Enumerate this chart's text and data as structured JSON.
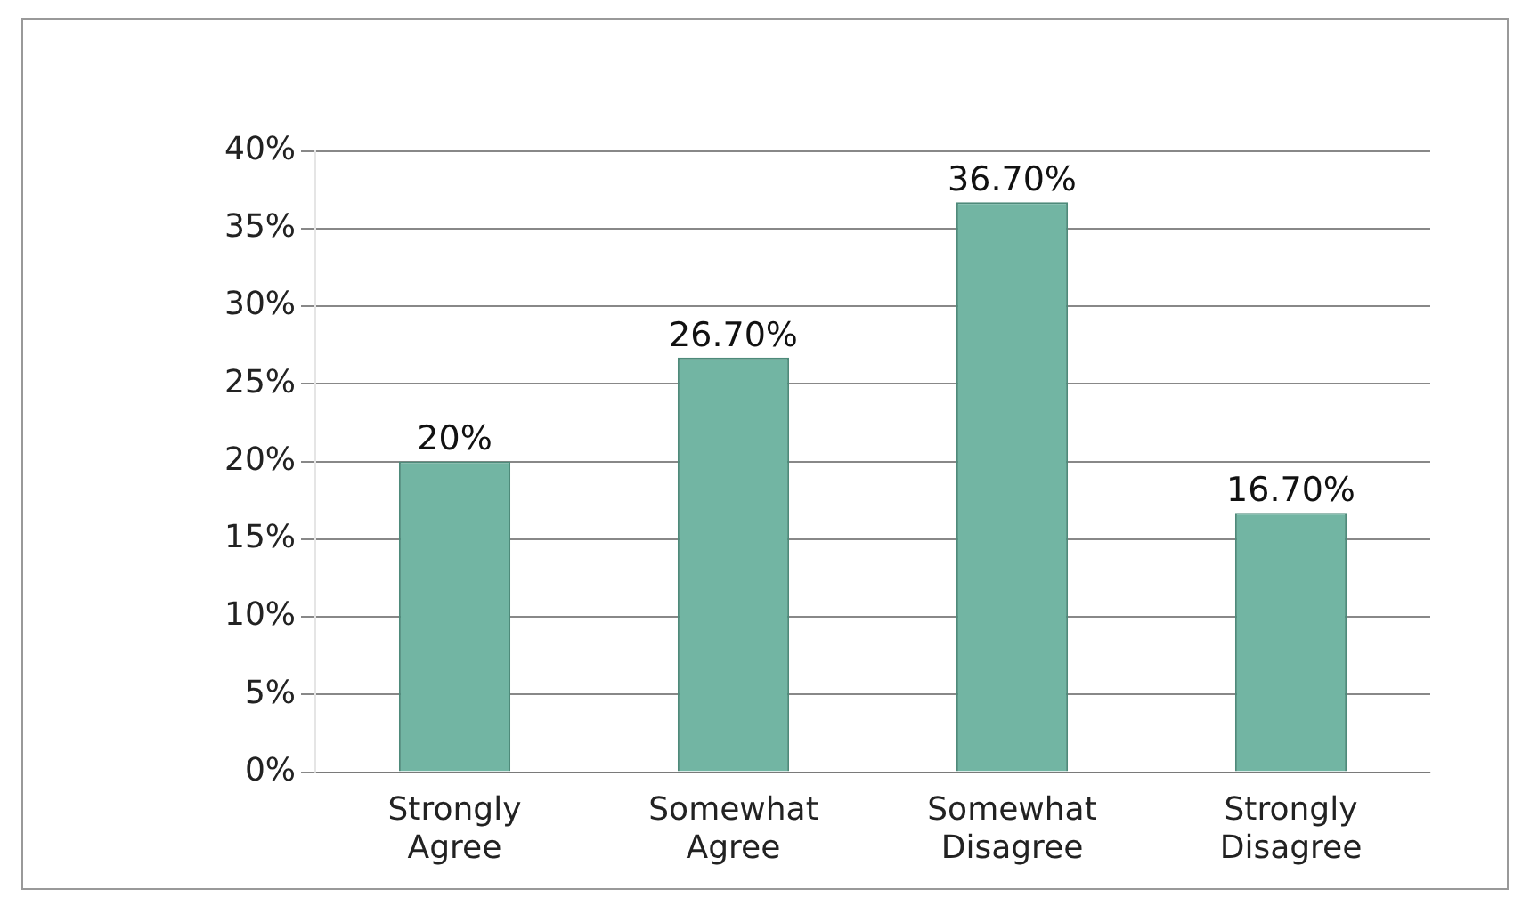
{
  "chart_data": {
    "type": "bar",
    "categories": [
      "Strongly Agree",
      "Somewhat Agree",
      "Somewhat Disagree",
      "Strongly Disagree"
    ],
    "values": [
      20,
      26.7,
      36.7,
      16.7
    ],
    "value_labels": [
      "20%",
      "26.70%",
      "36.70%",
      "16.70%"
    ],
    "color": "#72b5a3",
    "ylim": [
      0,
      40
    ],
    "yticks": [
      {
        "value": 0,
        "label": "0%"
      },
      {
        "value": 5,
        "label": "5%"
      },
      {
        "value": 10,
        "label": "10%"
      },
      {
        "value": 15,
        "label": "15%"
      },
      {
        "value": 20,
        "label": "20%"
      },
      {
        "value": 25,
        "label": "25%"
      },
      {
        "value": 30,
        "label": "30%"
      },
      {
        "value": 35,
        "label": "35%"
      },
      {
        "value": 40,
        "label": "40%"
      }
    ],
    "grid": "y"
  }
}
